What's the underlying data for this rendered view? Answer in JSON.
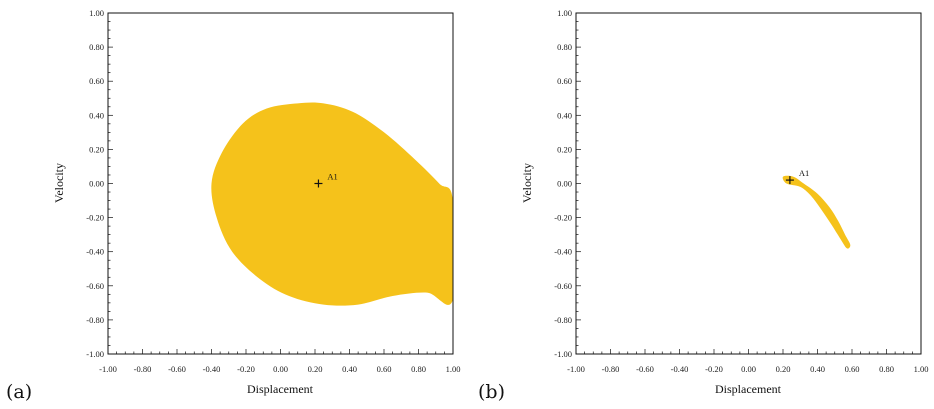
{
  "chart_data": [
    {
      "panel": "(a)",
      "type": "area",
      "xlabel": "Displacement",
      "ylabel": "Velocity",
      "xlim": [
        -1.0,
        1.0
      ],
      "ylim": [
        -1.0,
        1.0
      ],
      "x_ticks": [
        "-1.00",
        "-0.80",
        "-0.60",
        "-0.40",
        "-0.20",
        "0.00",
        "0.20",
        "0.40",
        "0.60",
        "0.80",
        "1.00"
      ],
      "y_ticks": [
        "1.00",
        "0.80",
        "0.60",
        "0.40",
        "0.20",
        "0.00",
        "-0.20",
        "-0.40",
        "-0.60",
        "-0.80",
        "-1.00"
      ],
      "grid": false,
      "fill_color": "#F5C21B",
      "region": [
        [
          1.0,
          -0.1
        ],
        [
          0.92,
          0.0
        ],
        [
          0.78,
          0.14
        ],
        [
          0.6,
          0.3
        ],
        [
          0.42,
          0.42
        ],
        [
          0.25,
          0.47
        ],
        [
          0.1,
          0.47
        ],
        [
          -0.08,
          0.44
        ],
        [
          -0.22,
          0.35
        ],
        [
          -0.34,
          0.18
        ],
        [
          -0.4,
          0.0
        ],
        [
          -0.37,
          -0.2
        ],
        [
          -0.28,
          -0.4
        ],
        [
          -0.12,
          -0.56
        ],
        [
          0.05,
          -0.66
        ],
        [
          0.25,
          -0.71
        ],
        [
          0.45,
          -0.71
        ],
        [
          0.65,
          -0.66
        ],
        [
          0.85,
          -0.64
        ],
        [
          1.0,
          -0.68
        ]
      ],
      "point": {
        "label": "A1",
        "x": 0.22,
        "y": 0.0
      }
    },
    {
      "panel": "(b)",
      "type": "area",
      "xlabel": "Displacement",
      "ylabel": "Velocity",
      "xlim": [
        -1.0,
        1.0
      ],
      "ylim": [
        -1.0,
        1.0
      ],
      "x_ticks": [
        "-1.00",
        "-0.80",
        "-0.60",
        "-0.40",
        "-0.20",
        "0.00",
        "0.20",
        "0.40",
        "0.60",
        "0.80",
        "1.00"
      ],
      "y_ticks": [
        "1.00",
        "0.80",
        "0.60",
        "0.40",
        "0.20",
        "0.00",
        "-0.20",
        "-0.40",
        "-0.60",
        "-0.80",
        "-1.00"
      ],
      "grid": false,
      "fill_color": "#F5C21B",
      "region": [
        [
          0.2,
          0.04
        ],
        [
          0.26,
          0.04
        ],
        [
          0.32,
          0.0
        ],
        [
          0.4,
          -0.06
        ],
        [
          0.47,
          -0.14
        ],
        [
          0.52,
          -0.22
        ],
        [
          0.56,
          -0.3
        ],
        [
          0.59,
          -0.36
        ],
        [
          0.57,
          -0.38
        ],
        [
          0.53,
          -0.32
        ],
        [
          0.48,
          -0.24
        ],
        [
          0.42,
          -0.15
        ],
        [
          0.36,
          -0.07
        ],
        [
          0.3,
          -0.02
        ],
        [
          0.22,
          0.0
        ]
      ],
      "point": {
        "label": "A1",
        "x": 0.24,
        "y": 0.02
      }
    }
  ]
}
